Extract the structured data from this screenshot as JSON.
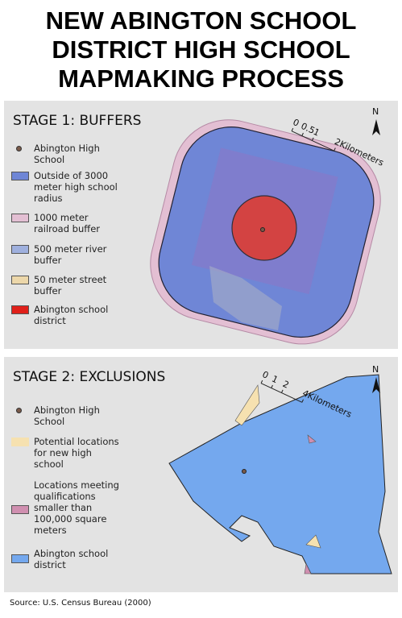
{
  "title": [
    "NEW ABINGTON SCHOOL",
    "DISTRICT HIGH SCHOOL",
    "MAPMAKING PROCESS"
  ],
  "stage1": {
    "heading": "STAGE 1: BUFFERS",
    "legend": [
      "Abington High School",
      "Outside of 3000 meter high school radius",
      "1000 meter railroad buffer",
      "500 meter river buffer",
      "50 meter street buffer",
      "Abington school district"
    ],
    "scale": [
      "0",
      "0.5",
      "1",
      "2Kilometers"
    ],
    "north": "N"
  },
  "stage2": {
    "heading": "STAGE 2: EXCLUSIONS",
    "legend": [
      "Abington High School",
      "Potential locations for new high school",
      "Locations meeting qualifications smaller than 100,000 square meters",
      "Abington school district"
    ],
    "scale": [
      "0",
      "1",
      "2",
      "4Kilometers"
    ],
    "north": "N"
  },
  "source": "Source: U.S. Census Bureau (2000)"
}
